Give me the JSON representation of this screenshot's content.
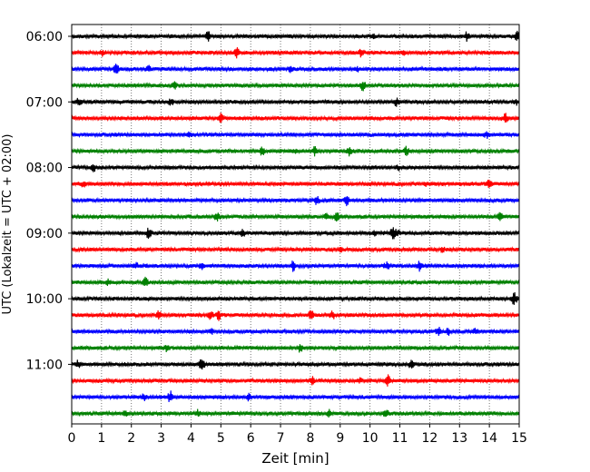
{
  "chart_data": {
    "type": "line",
    "title": "",
    "xlabel": "Zeit  [min]",
    "ylabel": "UTC (Lokalzeit = UTC + 02:00)",
    "xlim": [
      0,
      15
    ],
    "x_ticks": [
      0,
      1,
      2,
      3,
      4,
      5,
      6,
      7,
      8,
      9,
      10,
      11,
      12,
      13,
      14,
      15
    ],
    "grid": "vertical dotted",
    "legend": "none",
    "y_ticks": [
      "06:00",
      "07:00",
      "08:00",
      "09:00",
      "10:00",
      "11:00"
    ],
    "trace_interval_min": 15,
    "start_time": "06:00",
    "trace_colors": [
      "#000000",
      "#ff0000",
      "#0000ff",
      "#008000"
    ],
    "traces": [
      {
        "start": "06:00",
        "color": "#000000"
      },
      {
        "start": "06:15",
        "color": "#ff0000"
      },
      {
        "start": "06:30",
        "color": "#0000ff"
      },
      {
        "start": "06:45",
        "color": "#008000"
      },
      {
        "start": "07:00",
        "color": "#000000"
      },
      {
        "start": "07:15",
        "color": "#ff0000"
      },
      {
        "start": "07:30",
        "color": "#0000ff"
      },
      {
        "start": "07:45",
        "color": "#008000"
      },
      {
        "start": "08:00",
        "color": "#000000"
      },
      {
        "start": "08:15",
        "color": "#ff0000"
      },
      {
        "start": "08:30",
        "color": "#0000ff"
      },
      {
        "start": "08:45",
        "color": "#008000"
      },
      {
        "start": "09:00",
        "color": "#000000"
      },
      {
        "start": "09:15",
        "color": "#ff0000"
      },
      {
        "start": "09:30",
        "color": "#0000ff"
      },
      {
        "start": "09:45",
        "color": "#008000"
      },
      {
        "start": "10:00",
        "color": "#000000"
      },
      {
        "start": "10:15",
        "color": "#ff0000"
      },
      {
        "start": "10:30",
        "color": "#0000ff"
      },
      {
        "start": "10:45",
        "color": "#008000"
      },
      {
        "start": "11:00",
        "color": "#000000"
      },
      {
        "start": "11:15",
        "color": "#ff0000"
      },
      {
        "start": "11:30",
        "color": "#0000ff"
      },
      {
        "start": "11:45",
        "color": "#008000"
      }
    ]
  }
}
